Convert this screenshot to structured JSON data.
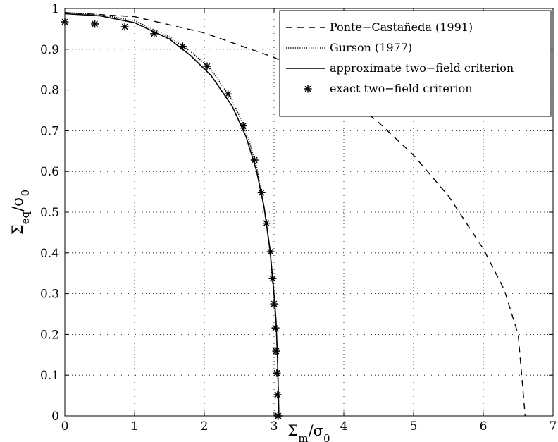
{
  "chart_data": {
    "type": "line",
    "xlabel": {
      "main": "Σ",
      "sub": "m",
      "tail": "/σ",
      "sub2": "0"
    },
    "ylabel": {
      "main": "Σ",
      "sub": "eq",
      "tail": "/σ",
      "sub2": "0"
    },
    "xlim": [
      0,
      7
    ],
    "ylim": [
      0,
      1
    ],
    "xticks": [
      0,
      1,
      2,
      3,
      4,
      5,
      6,
      7
    ],
    "yticks": [
      0,
      0.1,
      0.2,
      0.3,
      0.4,
      0.5,
      0.6,
      0.7,
      0.8,
      0.9,
      1
    ],
    "xtick_labels": [
      "0",
      "1",
      "2",
      "3",
      "4",
      "5",
      "6",
      "7"
    ],
    "ytick_labels": [
      "0",
      "0.1",
      "0.2",
      "0.3",
      "0.4",
      "0.5",
      "0.6",
      "0.7",
      "0.8",
      "0.9",
      "1"
    ],
    "grid": true,
    "legend_position": "top-right",
    "series": [
      {
        "name": "Ponte−Castañeda (1991)",
        "style": "dashed",
        "color": "#000000",
        "x": [
          0,
          1,
          2,
          3,
          3.5,
          4,
          4.5,
          5,
          5.5,
          6,
          6.3,
          6.5,
          6.55,
          6.6
        ],
        "y": [
          0.99,
          0.98,
          0.94,
          0.88,
          0.84,
          0.79,
          0.72,
          0.64,
          0.54,
          0.41,
          0.31,
          0.2,
          0.1,
          0
        ]
      },
      {
        "name": "Gurson (1977)",
        "style": "dotted",
        "color": "#000000",
        "x": [
          0,
          0.5,
          1,
          1.5,
          1.8,
          2.1,
          2.4,
          2.6,
          2.75,
          2.85,
          2.93,
          2.98,
          3.02,
          3.05,
          3.06,
          3.07
        ],
        "y": [
          0.99,
          0.985,
          0.97,
          0.93,
          0.895,
          0.85,
          0.775,
          0.7,
          0.61,
          0.52,
          0.42,
          0.33,
          0.24,
          0.15,
          0.07,
          0
        ]
      },
      {
        "name": "approximate two−field criterion",
        "style": "solid",
        "color": "#000000",
        "x": [
          0,
          0.5,
          1,
          1.5,
          1.8,
          2.1,
          2.4,
          2.6,
          2.75,
          2.86,
          2.94,
          2.99,
          3.03,
          3.05,
          3.06,
          3.07
        ],
        "y": [
          0.987,
          0.982,
          0.965,
          0.925,
          0.885,
          0.835,
          0.76,
          0.685,
          0.6,
          0.51,
          0.41,
          0.32,
          0.23,
          0.14,
          0.07,
          0
        ]
      },
      {
        "name": "exact two−field criterion",
        "style": "markers",
        "color": "#000000",
        "x": [
          0,
          0.43,
          0.86,
          1.28,
          1.69,
          2.04,
          2.34,
          2.56,
          2.72,
          2.82,
          2.89,
          2.95,
          2.98,
          3.0,
          3.02,
          3.03,
          3.04,
          3.05,
          3.055,
          3.06
        ],
        "y": [
          0.967,
          0.962,
          0.955,
          0.938,
          0.907,
          0.858,
          0.79,
          0.712,
          0.628,
          0.548,
          0.473,
          0.403,
          0.337,
          0.275,
          0.216,
          0.159,
          0.105,
          0.052,
          0.0,
          -0.001
        ]
      }
    ]
  }
}
